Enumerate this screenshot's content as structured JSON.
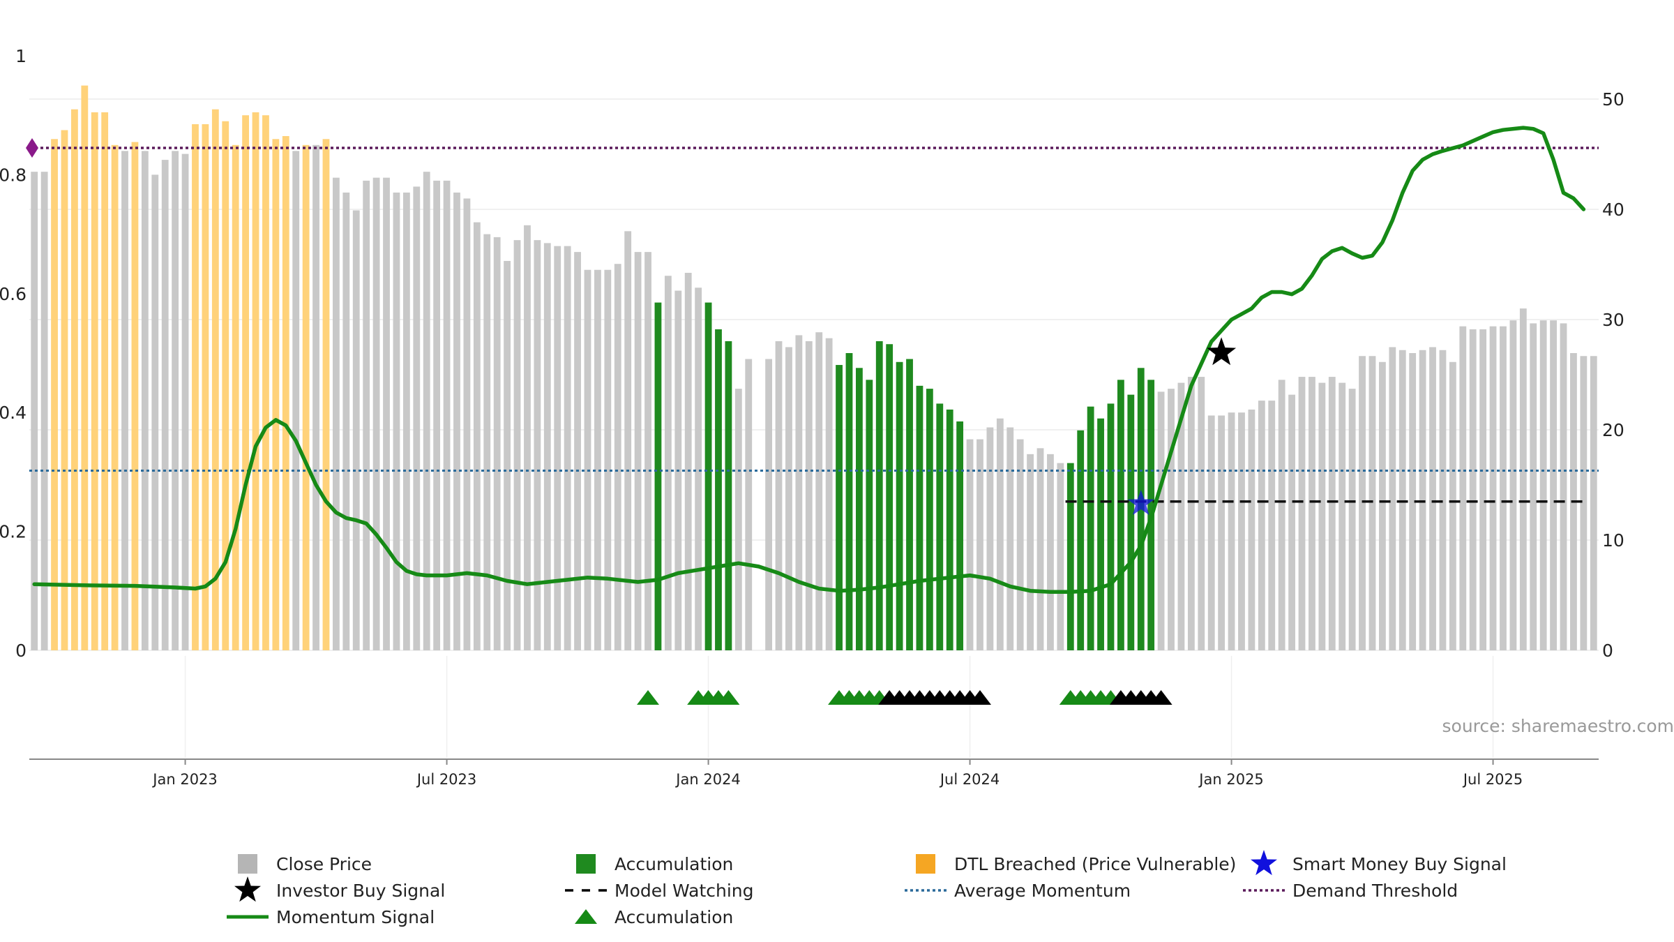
{
  "chart_data": {
    "type": "bar",
    "source_note": "source: sharemaestro.com",
    "left_axis": {
      "ylim": [
        0,
        1
      ],
      "ticks": [
        "0",
        "0.2",
        "0.4",
        "0.6",
        "0.8",
        "1"
      ]
    },
    "right_axis": {
      "ylim": [
        0,
        54
      ],
      "ticks": [
        "0",
        "10",
        "20",
        "30",
        "40",
        "50"
      ]
    },
    "x_axis": {
      "ticks": [
        {
          "label": "Jan 2023",
          "week": 15
        },
        {
          "label": "Jul 2023",
          "week": 41
        },
        {
          "label": "Jan 2024",
          "week": 67
        },
        {
          "label": "Jul 2024",
          "week": 93
        },
        {
          "label": "Jan 2025",
          "week": 119
        },
        {
          "label": "Jul 2025",
          "week": 145
        }
      ]
    },
    "close_price": {
      "values": [
        0.805,
        0.805,
        0.86,
        0.875,
        0.91,
        0.95,
        0.905,
        0.905,
        0.85,
        0.84,
        0.855,
        0.84,
        0.8,
        0.825,
        0.84,
        0.835,
        0.885,
        0.885,
        0.91,
        0.89,
        0.85,
        0.9,
        0.905,
        0.9,
        0.86,
        0.865,
        0.84,
        0.85,
        0.85,
        0.86,
        0.795,
        0.77,
        0.74,
        0.79,
        0.795,
        0.795,
        0.77,
        0.77,
        0.78,
        0.805,
        0.79,
        0.79,
        0.77,
        0.76,
        0.72,
        0.7,
        0.695,
        0.655,
        0.69,
        0.715,
        0.69,
        0.685,
        0.68,
        0.68,
        0.67,
        0.64,
        0.64,
        0.64,
        0.65,
        0.705,
        0.67,
        0.67,
        0.585,
        0.63,
        0.605,
        0.635,
        0.61,
        0.585,
        0.54,
        0.52,
        0.44,
        0.49,
        null,
        0.49,
        0.52,
        0.51,
        0.53,
        0.52,
        0.535,
        0.525,
        0.48,
        0.5,
        0.475,
        0.455,
        0.52,
        0.515,
        0.485,
        0.49,
        0.445,
        0.44,
        0.415,
        0.405,
        0.385,
        0.355,
        0.355,
        0.375,
        0.39,
        0.375,
        0.355,
        0.33,
        0.34,
        0.33,
        0.315,
        0.315,
        0.37,
        0.41,
        0.39,
        0.415,
        0.455,
        0.43,
        0.475,
        0.455,
        0.435,
        0.44,
        0.45,
        0.46,
        0.46,
        0.395,
        0.395,
        0.4,
        0.4,
        0.405,
        0.42,
        0.42,
        0.455,
        0.43,
        0.46,
        0.46,
        0.45,
        0.46,
        0.45,
        0.44,
        0.495,
        0.495,
        0.485,
        0.51,
        0.505,
        0.5,
        0.505,
        0.51,
        0.505,
        0.485,
        0.545,
        0.54,
        0.54,
        0.545,
        0.545,
        0.555,
        0.575,
        0.55,
        0.555,
        0.555,
        0.55,
        0.5,
        0.495,
        0.495
      ],
      "dtl_breached_weeks": [
        2,
        3,
        4,
        5,
        6,
        7,
        8,
        10,
        16,
        17,
        18,
        19,
        20,
        21,
        22,
        23,
        24,
        25,
        27,
        29
      ],
      "accumulation_weeks": [
        62,
        67,
        68,
        69,
        80,
        81,
        82,
        83,
        84,
        85,
        86,
        87,
        88,
        89,
        90,
        91,
        92,
        103,
        104,
        105,
        106,
        107,
        108,
        109,
        110,
        111
      ]
    },
    "momentum_signal": {
      "points": [
        [
          0,
          6.0
        ],
        [
          5,
          5.9
        ],
        [
          10,
          5.85
        ],
        [
          14,
          5.7
        ],
        [
          16,
          5.6
        ],
        [
          17,
          5.8
        ],
        [
          18,
          6.5
        ],
        [
          19,
          8.0
        ],
        [
          20,
          11.0
        ],
        [
          21,
          15.0
        ],
        [
          22,
          18.5
        ],
        [
          23,
          20.2
        ],
        [
          24,
          20.9
        ],
        [
          25,
          20.4
        ],
        [
          26,
          19.0
        ],
        [
          27,
          17.0
        ],
        [
          28,
          15.0
        ],
        [
          29,
          13.5
        ],
        [
          30,
          12.5
        ],
        [
          31,
          12.0
        ],
        [
          32,
          11.8
        ],
        [
          33,
          11.5
        ],
        [
          34,
          10.5
        ],
        [
          35,
          9.3
        ],
        [
          36,
          8.0
        ],
        [
          37,
          7.2
        ],
        [
          38,
          6.9
        ],
        [
          39,
          6.8
        ],
        [
          41,
          6.8
        ],
        [
          43,
          7.0
        ],
        [
          45,
          6.8
        ],
        [
          47,
          6.3
        ],
        [
          49,
          6.0
        ],
        [
          51,
          6.2
        ],
        [
          53,
          6.4
        ],
        [
          55,
          6.6
        ],
        [
          57,
          6.5
        ],
        [
          60,
          6.2
        ],
        [
          62,
          6.4
        ],
        [
          64,
          7.0
        ],
        [
          66,
          7.3
        ],
        [
          68,
          7.6
        ],
        [
          70,
          7.9
        ],
        [
          72,
          7.6
        ],
        [
          74,
          7.0
        ],
        [
          76,
          6.2
        ],
        [
          78,
          5.6
        ],
        [
          80,
          5.4
        ],
        [
          82,
          5.5
        ],
        [
          84,
          5.7
        ],
        [
          86,
          6.0
        ],
        [
          88,
          6.3
        ],
        [
          90,
          6.5
        ],
        [
          92,
          6.7
        ],
        [
          93,
          6.8
        ],
        [
          95,
          6.5
        ],
        [
          97,
          5.8
        ],
        [
          99,
          5.4
        ],
        [
          101,
          5.3
        ],
        [
          103,
          5.3
        ],
        [
          105,
          5.4
        ],
        [
          107,
          6.0
        ],
        [
          108,
          7.0
        ],
        [
          109,
          8.0
        ],
        [
          110,
          9.5
        ],
        [
          111,
          12.0
        ],
        [
          112,
          15.0
        ],
        [
          113,
          18.0
        ],
        [
          114,
          21.0
        ],
        [
          115,
          24.0
        ],
        [
          116,
          26.0
        ],
        [
          117,
          28.0
        ],
        [
          118,
          29.0
        ],
        [
          119,
          30.0
        ],
        [
          120,
          30.5
        ],
        [
          121,
          31.0
        ],
        [
          122,
          32.0
        ],
        [
          123,
          32.5
        ],
        [
          124,
          32.5
        ],
        [
          125,
          32.3
        ],
        [
          126,
          32.8
        ],
        [
          127,
          34.0
        ],
        [
          128,
          35.5
        ],
        [
          129,
          36.2
        ],
        [
          130,
          36.5
        ],
        [
          131,
          36.0
        ],
        [
          132,
          35.6
        ],
        [
          133,
          35.8
        ],
        [
          134,
          37.0
        ],
        [
          135,
          39.0
        ],
        [
          136,
          41.5
        ],
        [
          137,
          43.5
        ],
        [
          138,
          44.5
        ],
        [
          139,
          45.0
        ],
        [
          140,
          45.3
        ],
        [
          142,
          45.8
        ],
        [
          144,
          46.6
        ],
        [
          145,
          47.0
        ],
        [
          146,
          47.2
        ],
        [
          148,
          47.4
        ],
        [
          149,
          47.3
        ],
        [
          150,
          46.9
        ],
        [
          151,
          44.5
        ],
        [
          152,
          41.5
        ],
        [
          153,
          41.0
        ],
        [
          154,
          40.0
        ]
      ],
      "color": "#168a16"
    },
    "average_momentum": {
      "value": 16.3,
      "color": "#2a6a9a"
    },
    "demand_threshold": {
      "value": 0.845,
      "color": "#5a1a5a"
    },
    "model_watching": {
      "value": 13.5,
      "from_week": 103,
      "to_week": 154
    },
    "investor_buy_signal": {
      "week": 118,
      "value": 27.0
    },
    "smart_money_buy_signal": {
      "week": 110,
      "value": 13.3
    },
    "accumulation_markers": {
      "green_weeks": [
        61,
        66,
        67,
        68,
        69,
        80,
        81,
        82,
        83,
        84,
        103,
        104,
        105,
        106,
        107
      ],
      "black_weeks": [
        85,
        86,
        87,
        88,
        89,
        90,
        91,
        92,
        93,
        94,
        108,
        109,
        110,
        111,
        112
      ]
    },
    "colors": {
      "close_price": "#c8c8c8",
      "accumulation": "#1f8a1f",
      "dtl_breached": "#ffd27a",
      "legend_dtl": "#f5a623",
      "smart_money": "#1111dd",
      "investor_buy": "#000000"
    },
    "legend": [
      {
        "key": "close",
        "label": "Close Price",
        "marker": "square",
        "color": "#b5b5b5"
      },
      {
        "key": "accum_bar",
        "label": "Accumulation",
        "marker": "square",
        "color": "#1f8a1f"
      },
      {
        "key": "dtl",
        "label": "DTL Breached (Price Vulnerable)",
        "marker": "square",
        "color": "#f5a623"
      },
      {
        "key": "smart",
        "label": "Smart Money Buy Signal",
        "marker": "star",
        "color": "#1111dd"
      },
      {
        "key": "investor",
        "label": "Investor Buy Signal",
        "marker": "star",
        "color": "#000000"
      },
      {
        "key": "watching",
        "label": "Model Watching",
        "marker": "dash",
        "color": "#000000"
      },
      {
        "key": "avgmom",
        "label": "Average Momentum",
        "marker": "dotted",
        "color": "#2a6a9a"
      },
      {
        "key": "demand",
        "label": "Demand Threshold",
        "marker": "dotted",
        "color": "#5a1a5a"
      },
      {
        "key": "momentum",
        "label": "Momentum Signal",
        "marker": "line",
        "color": "#168a16"
      },
      {
        "key": "accum_tri",
        "label": "Accumulation",
        "marker": "triangle",
        "color": "#168a16"
      }
    ]
  }
}
